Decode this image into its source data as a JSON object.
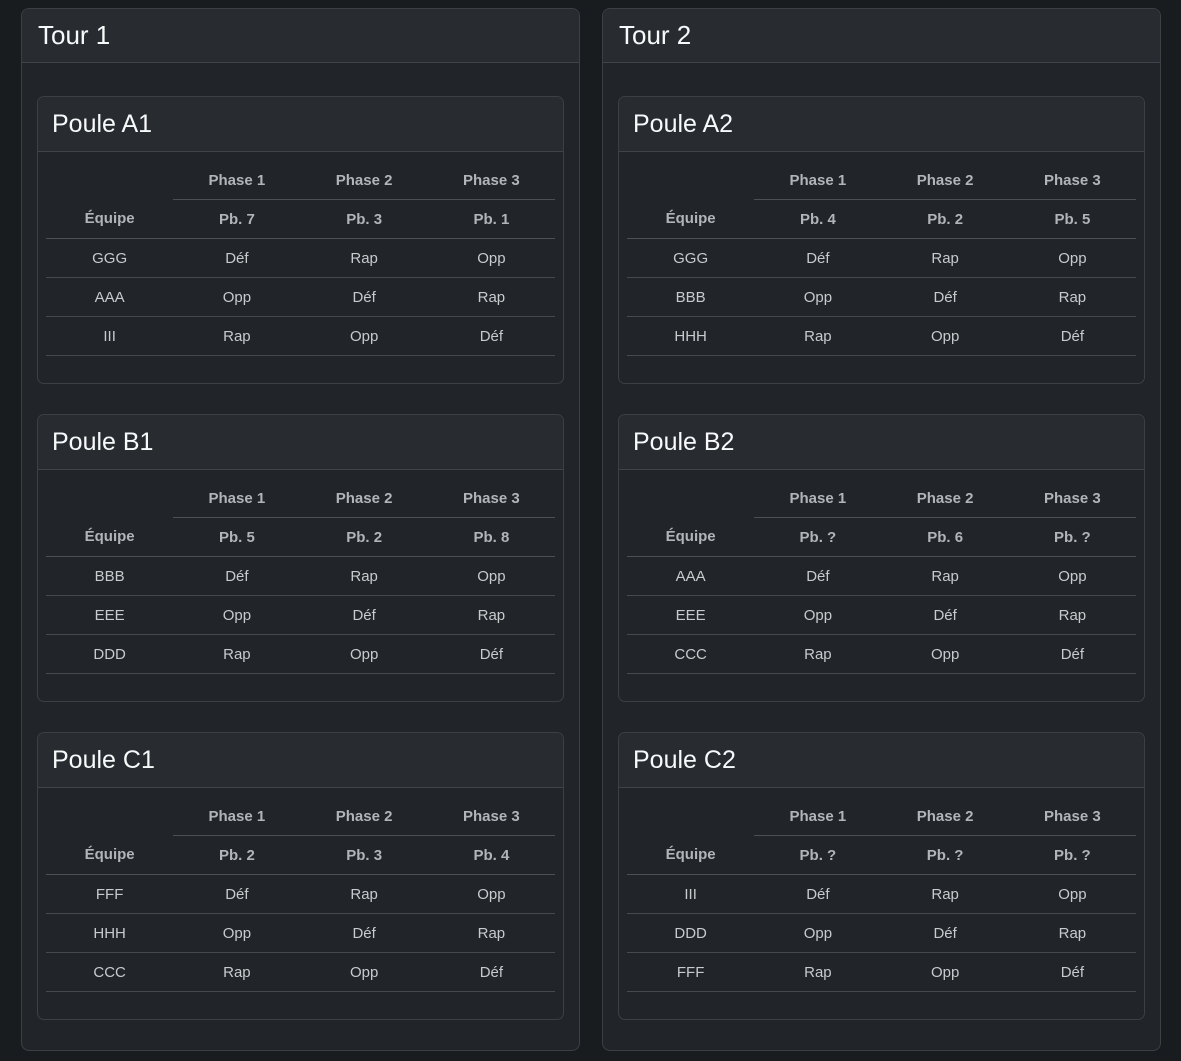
{
  "labels": {
    "equipe": "Équipe"
  },
  "colors": {
    "page_bg": "#191c1f",
    "card_bg": "#212529",
    "header_bg": "#282c31",
    "card_border": "#3b4046",
    "table_border": "#4a5056",
    "title_text": "#f8f9fa",
    "header_text": "#b1b5b9",
    "cell_text": "#c8cacc"
  },
  "tours": [
    {
      "title": "Tour 1",
      "poules": [
        {
          "title": "Poule A1",
          "phases": [
            "Phase 1",
            "Phase 2",
            "Phase 3"
          ],
          "problems": [
            "Pb. 7",
            "Pb. 3",
            "Pb. 1"
          ],
          "teams": [
            {
              "name": "GGG",
              "roles": [
                "Déf",
                "Rap",
                "Opp"
              ]
            },
            {
              "name": "AAA",
              "roles": [
                "Opp",
                "Déf",
                "Rap"
              ]
            },
            {
              "name": "III",
              "roles": [
                "Rap",
                "Opp",
                "Déf"
              ]
            }
          ]
        },
        {
          "title": "Poule B1",
          "phases": [
            "Phase 1",
            "Phase 2",
            "Phase 3"
          ],
          "problems": [
            "Pb. 5",
            "Pb. 2",
            "Pb. 8"
          ],
          "teams": [
            {
              "name": "BBB",
              "roles": [
                "Déf",
                "Rap",
                "Opp"
              ]
            },
            {
              "name": "EEE",
              "roles": [
                "Opp",
                "Déf",
                "Rap"
              ]
            },
            {
              "name": "DDD",
              "roles": [
                "Rap",
                "Opp",
                "Déf"
              ]
            }
          ]
        },
        {
          "title": "Poule C1",
          "phases": [
            "Phase 1",
            "Phase 2",
            "Phase 3"
          ],
          "problems": [
            "Pb. 2",
            "Pb. 3",
            "Pb. 4"
          ],
          "teams": [
            {
              "name": "FFF",
              "roles": [
                "Déf",
                "Rap",
                "Opp"
              ]
            },
            {
              "name": "HHH",
              "roles": [
                "Opp",
                "Déf",
                "Rap"
              ]
            },
            {
              "name": "CCC",
              "roles": [
                "Rap",
                "Opp",
                "Déf"
              ]
            }
          ]
        }
      ]
    },
    {
      "title": "Tour 2",
      "poules": [
        {
          "title": "Poule A2",
          "phases": [
            "Phase 1",
            "Phase 2",
            "Phase 3"
          ],
          "problems": [
            "Pb. 4",
            "Pb. 2",
            "Pb. 5"
          ],
          "teams": [
            {
              "name": "GGG",
              "roles": [
                "Déf",
                "Rap",
                "Opp"
              ]
            },
            {
              "name": "BBB",
              "roles": [
                "Opp",
                "Déf",
                "Rap"
              ]
            },
            {
              "name": "HHH",
              "roles": [
                "Rap",
                "Opp",
                "Déf"
              ]
            }
          ]
        },
        {
          "title": "Poule B2",
          "phases": [
            "Phase 1",
            "Phase 2",
            "Phase 3"
          ],
          "problems": [
            "Pb. ?",
            "Pb. 6",
            "Pb. ?"
          ],
          "teams": [
            {
              "name": "AAA",
              "roles": [
                "Déf",
                "Rap",
                "Opp"
              ]
            },
            {
              "name": "EEE",
              "roles": [
                "Opp",
                "Déf",
                "Rap"
              ]
            },
            {
              "name": "CCC",
              "roles": [
                "Rap",
                "Opp",
                "Déf"
              ]
            }
          ]
        },
        {
          "title": "Poule C2",
          "phases": [
            "Phase 1",
            "Phase 2",
            "Phase 3"
          ],
          "problems": [
            "Pb. ?",
            "Pb. ?",
            "Pb. ?"
          ],
          "teams": [
            {
              "name": "III",
              "roles": [
                "Déf",
                "Rap",
                "Opp"
              ]
            },
            {
              "name": "DDD",
              "roles": [
                "Opp",
                "Déf",
                "Rap"
              ]
            },
            {
              "name": "FFF",
              "roles": [
                "Rap",
                "Opp",
                "Déf"
              ]
            }
          ]
        }
      ]
    }
  ]
}
